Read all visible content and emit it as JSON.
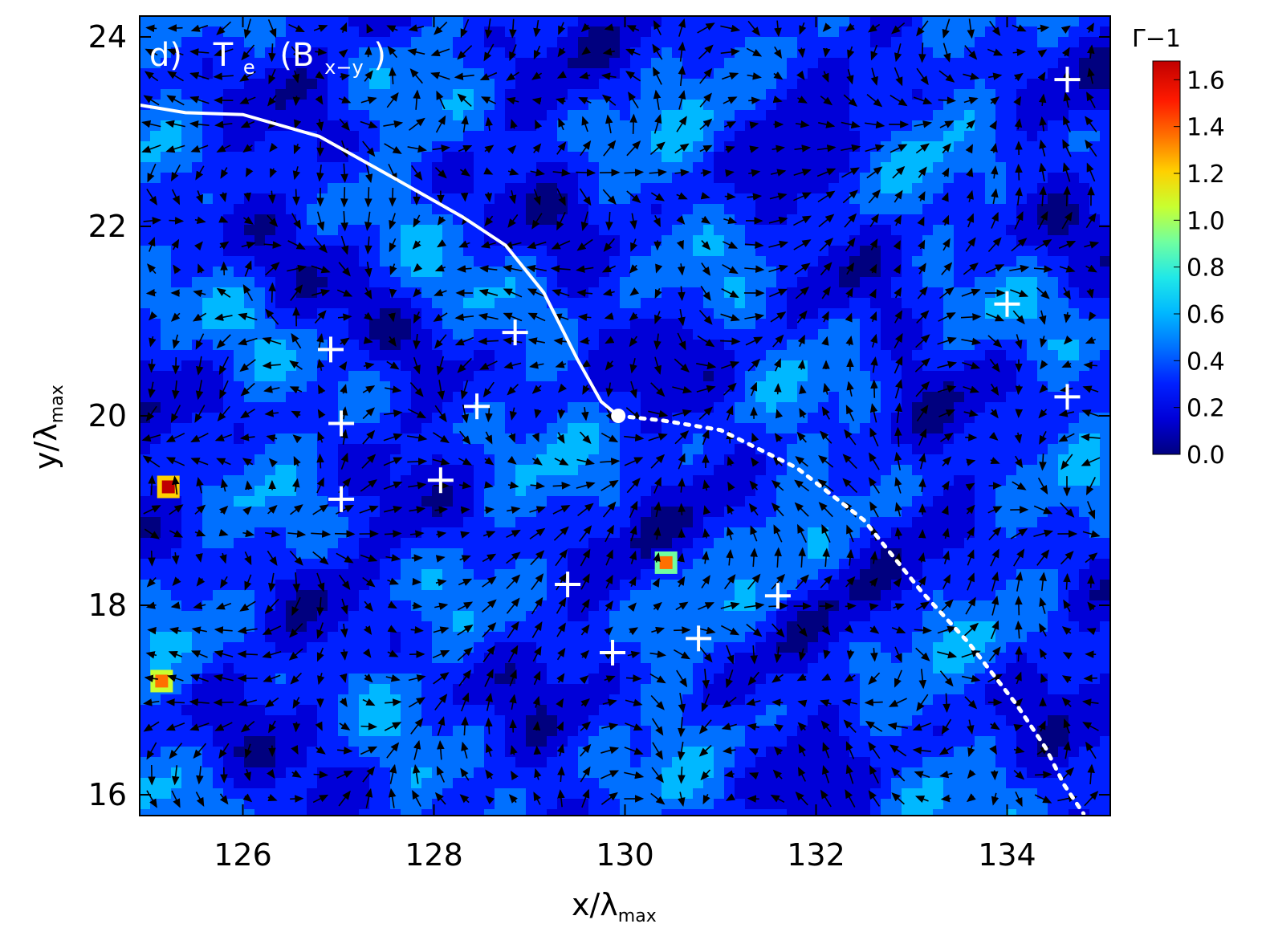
{
  "chart_data": {
    "type": "heatmap",
    "panel": {
      "label": "d)",
      "var_main": "T",
      "var_sub": "e",
      "field_main": "(B",
      "field_sub": "x−y",
      "field_close": ")"
    },
    "xlabel": {
      "main": "x/λ",
      "sub": "max"
    },
    "ylabel": {
      "main": "y/λ",
      "sub": "max"
    },
    "xlim": [
      124.92,
      135.08
    ],
    "ylim": [
      15.78,
      24.22
    ],
    "xticks": [
      126,
      128,
      130,
      132,
      134
    ],
    "yticks": [
      16,
      18,
      20,
      22,
      24
    ],
    "colorbar": {
      "label": "Γ−1",
      "range": [
        0.0,
        1.68
      ],
      "ticks": [
        0.0,
        0.2,
        0.4,
        0.6,
        0.8,
        1.0,
        1.2,
        1.4,
        1.6
      ],
      "colors": [
        "#00007f",
        "#0000d8",
        "#0020ff",
        "#0070ff",
        "#00b8ff",
        "#20e8e8",
        "#70ffa0",
        "#c8ff30",
        "#ffd000",
        "#ff7000",
        "#ff1a00",
        "#c00000"
      ]
    },
    "hot_spots": [
      {
        "x": 125.22,
        "y": 19.25,
        "value": 1.65
      },
      {
        "x": 125.15,
        "y": 17.2,
        "value": 1.4
      },
      {
        "x": 130.43,
        "y": 18.45,
        "value": 1.3
      }
    ],
    "x_points": [
      {
        "x": 126.92,
        "y": 20.7
      },
      {
        "x": 127.03,
        "y": 19.92
      },
      {
        "x": 127.03,
        "y": 19.12
      },
      {
        "x": 128.07,
        "y": 19.32
      },
      {
        "x": 128.45,
        "y": 20.1
      },
      {
        "x": 128.85,
        "y": 20.88
      },
      {
        "x": 129.4,
        "y": 18.22
      },
      {
        "x": 129.87,
        "y": 17.5
      },
      {
        "x": 130.77,
        "y": 17.65
      },
      {
        "x": 131.6,
        "y": 18.1
      },
      {
        "x": 134.0,
        "y": 21.18
      },
      {
        "x": 134.63,
        "y": 23.55
      },
      {
        "x": 134.63,
        "y": 20.2
      }
    ],
    "trajectory_solid": [
      {
        "x": 124.92,
        "y": 23.28
      },
      {
        "x": 125.4,
        "y": 23.2
      },
      {
        "x": 126.0,
        "y": 23.18
      },
      {
        "x": 126.8,
        "y": 22.95
      },
      {
        "x": 127.6,
        "y": 22.5
      },
      {
        "x": 128.3,
        "y": 22.1
      },
      {
        "x": 128.75,
        "y": 21.8
      },
      {
        "x": 129.15,
        "y": 21.3
      },
      {
        "x": 129.5,
        "y": 20.6
      },
      {
        "x": 129.75,
        "y": 20.15
      },
      {
        "x": 129.93,
        "y": 20.0
      }
    ],
    "trajectory_dashed": [
      {
        "x": 129.93,
        "y": 20.0
      },
      {
        "x": 130.4,
        "y": 19.95
      },
      {
        "x": 131.0,
        "y": 19.85
      },
      {
        "x": 131.8,
        "y": 19.45
      },
      {
        "x": 132.5,
        "y": 18.9
      },
      {
        "x": 133.1,
        "y": 18.15
      },
      {
        "x": 133.6,
        "y": 17.6
      },
      {
        "x": 134.1,
        "y": 16.95
      },
      {
        "x": 134.4,
        "y": 16.5
      },
      {
        "x": 134.6,
        "y": 16.1
      },
      {
        "x": 134.8,
        "y": 15.8
      }
    ],
    "origin_point": {
      "x": 129.93,
      "y": 20.0
    }
  }
}
